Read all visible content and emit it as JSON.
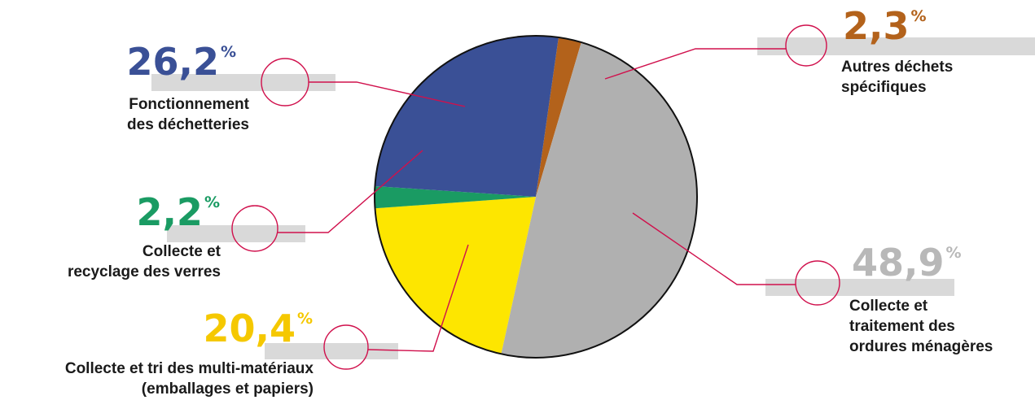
{
  "chart_data": {
    "type": "pie",
    "slices": [
      {
        "id": "autres",
        "value": 2.3,
        "pct_text": "2,3",
        "label": [
          "Autres déchets",
          "spécifiques"
        ],
        "color": "#b3621b"
      },
      {
        "id": "ordures",
        "value": 48.9,
        "pct_text": "48,9",
        "label": [
          "Collecte et",
          "traitement des",
          "ordures ménagères"
        ],
        "color": "#b0b0b0"
      },
      {
        "id": "multi",
        "value": 20.4,
        "pct_text": "20,4",
        "label": [
          "Collecte et tri des multi-matériaux",
          "(emballages et papiers)"
        ],
        "color": "#fde600"
      },
      {
        "id": "verres",
        "value": 2.2,
        "pct_text": "2,2",
        "label": [
          "Collecte et",
          "recyclage des verres"
        ],
        "color": "#1a9b63"
      },
      {
        "id": "decheteries",
        "value": 26.2,
        "pct_text": "26,2",
        "label": [
          "Fonctionnement",
          "des déchetteries"
        ],
        "color": "#3a5096"
      }
    ],
    "percent_symbol": "%",
    "pct_colors": {
      "autres": "#b3621b",
      "ordures": "#b8b8b8",
      "multi": "#f5c800",
      "verres": "#1a9b63",
      "decheteries": "#3a5096"
    },
    "leader_color": "#d0104c",
    "bar_color": "#d9d9d9"
  }
}
